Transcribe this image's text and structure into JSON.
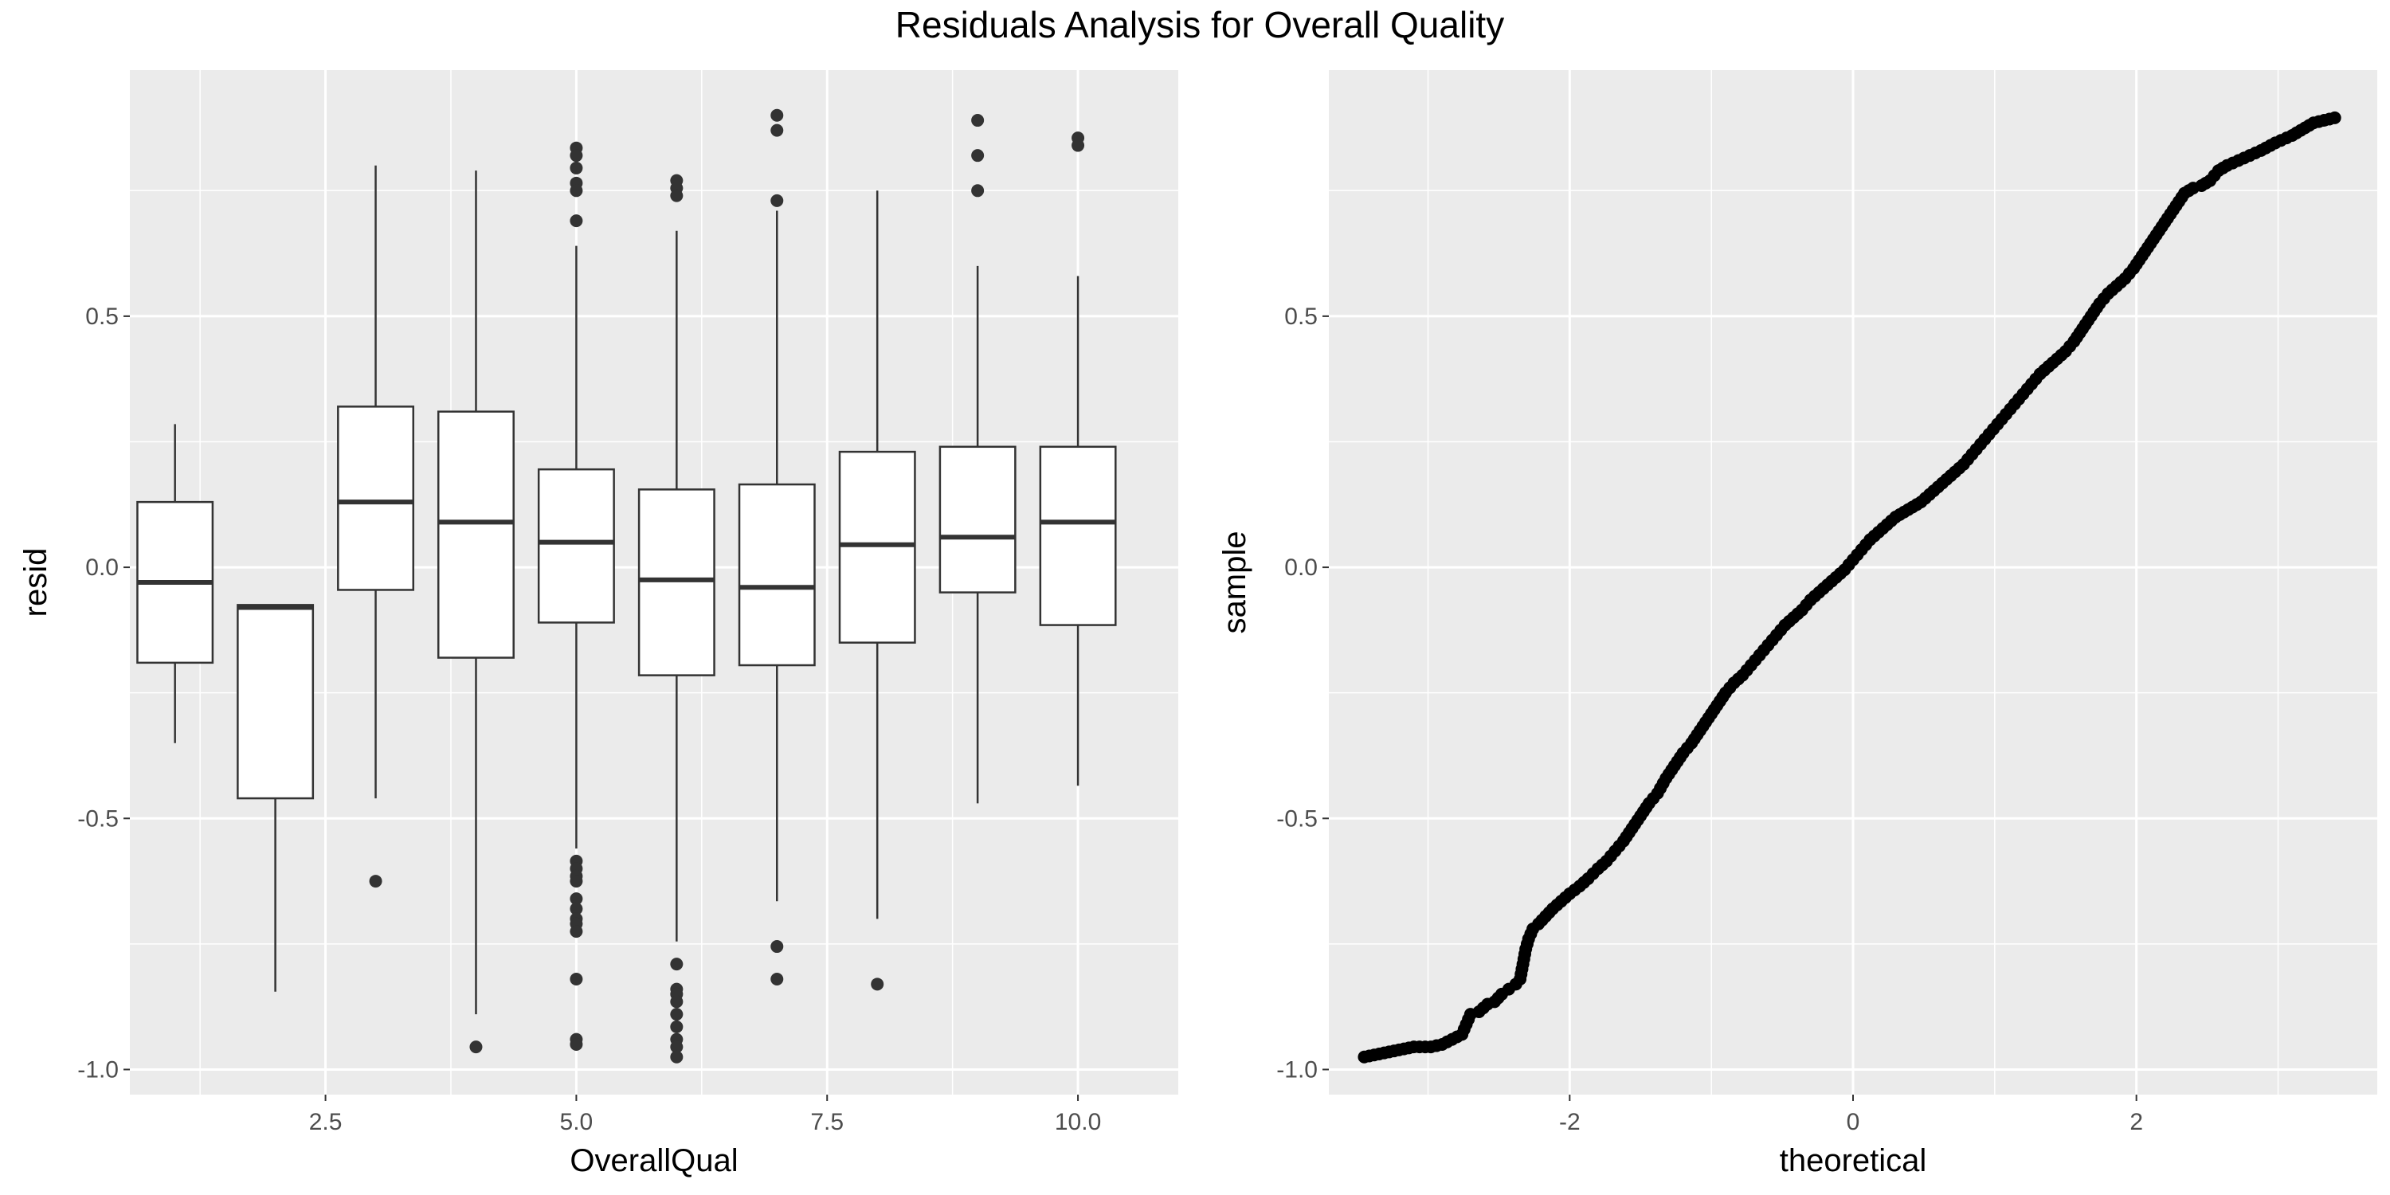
{
  "title": "Residuals Analysis for Overall Quality",
  "colors": {
    "panel": "#ebebeb",
    "grid": "#ffffff",
    "box_fill": "#ffffff",
    "box_line": "#333333",
    "point": "#000000",
    "outlier": "#333333",
    "text": "#000000",
    "tick_text": "#4d4d4d"
  },
  "chart_data": [
    {
      "type": "box",
      "xlabel": "OverallQual",
      "ylabel": "resid",
      "xlim": [
        0.55,
        11.0
      ],
      "ylim": [
        -1.05,
        0.99
      ],
      "x_ticks": [
        2.5,
        5.0,
        7.5,
        10.0
      ],
      "x_tick_labels": [
        "2.5",
        "5.0",
        "7.5",
        "10.0"
      ],
      "y_ticks": [
        -1.0,
        -0.5,
        0.0,
        0.5
      ],
      "y_tick_labels": [
        "-1.0",
        "-0.5",
        "0.0",
        "0.5"
      ],
      "grid": true,
      "boxes": [
        {
          "x": 1,
          "lower_whisker": -0.35,
          "q1": -0.19,
          "median": -0.03,
          "q3": 0.13,
          "upper_whisker": 0.285,
          "outliers": []
        },
        {
          "x": 2,
          "lower_whisker": -0.845,
          "q1": -0.46,
          "median": -0.08,
          "q3": -0.075,
          "upper_whisker": -0.075,
          "outliers": []
        },
        {
          "x": 3,
          "lower_whisker": -0.46,
          "q1": -0.045,
          "median": 0.13,
          "q3": 0.32,
          "upper_whisker": 0.8,
          "outliers": [
            -0.625
          ]
        },
        {
          "x": 4,
          "lower_whisker": -0.89,
          "q1": -0.18,
          "median": 0.09,
          "q3": 0.31,
          "upper_whisker": 0.79,
          "outliers": [
            -0.955
          ]
        },
        {
          "x": 5,
          "lower_whisker": -0.56,
          "q1": -0.11,
          "median": 0.05,
          "q3": 0.195,
          "upper_whisker": 0.64,
          "outliers": [
            0.835,
            0.82,
            0.795,
            0.765,
            0.75,
            0.69,
            -0.585,
            -0.6,
            -0.615,
            -0.625,
            -0.66,
            -0.68,
            -0.7,
            -0.71,
            -0.725,
            -0.82,
            -0.94,
            -0.95
          ]
        },
        {
          "x": 6,
          "lower_whisker": -0.745,
          "q1": -0.215,
          "median": -0.025,
          "q3": 0.155,
          "upper_whisker": 0.67,
          "outliers": [
            0.77,
            0.755,
            0.74,
            -0.79,
            -0.84,
            -0.85,
            -0.865,
            -0.89,
            -0.915,
            -0.94,
            -0.955,
            -0.975
          ]
        },
        {
          "x": 7,
          "lower_whisker": -0.665,
          "q1": -0.195,
          "median": -0.04,
          "q3": 0.165,
          "upper_whisker": 0.71,
          "outliers": [
            0.9,
            0.87,
            0.73,
            -0.755,
            -0.82
          ]
        },
        {
          "x": 8,
          "lower_whisker": -0.7,
          "q1": -0.15,
          "median": 0.045,
          "q3": 0.23,
          "upper_whisker": 0.75,
          "outliers": [
            -0.83
          ]
        },
        {
          "x": 9,
          "lower_whisker": -0.47,
          "q1": -0.05,
          "median": 0.06,
          "q3": 0.24,
          "upper_whisker": 0.6,
          "outliers": [
            0.89,
            0.82,
            0.75
          ]
        },
        {
          "x": 10,
          "lower_whisker": -0.435,
          "q1": -0.115,
          "median": 0.09,
          "q3": 0.24,
          "upper_whisker": 0.58,
          "outliers": [
            0.855,
            0.84
          ]
        }
      ]
    },
    {
      "type": "scatter",
      "xlabel": "theoretical",
      "ylabel": "sample",
      "xlim": [
        -3.7,
        3.7
      ],
      "ylim": [
        -1.05,
        0.99
      ],
      "x_ticks": [
        -2,
        0,
        2
      ],
      "x_tick_labels": [
        "-2",
        "0",
        "2"
      ],
      "y_ticks": [
        -1.0,
        -0.5,
        0.0,
        0.5
      ],
      "y_tick_labels": [
        "-1.0",
        "-0.5",
        "0.0",
        "0.5"
      ],
      "grid": true,
      "points": [
        [
          -3.45,
          -0.975
        ],
        [
          -3.1,
          -0.955
        ],
        [
          -2.98,
          -0.955
        ],
        [
          -2.9,
          -0.95
        ],
        [
          -2.83,
          -0.94
        ],
        [
          -2.76,
          -0.93
        ],
        [
          -2.7,
          -0.89
        ],
        [
          -2.64,
          -0.885
        ],
        [
          -2.58,
          -0.87
        ],
        [
          -2.53,
          -0.865
        ],
        [
          -2.48,
          -0.85
        ],
        [
          -2.43,
          -0.84
        ],
        [
          -2.38,
          -0.83
        ],
        [
          -2.35,
          -0.82
        ],
        [
          -2.33,
          -0.79
        ],
        [
          -2.31,
          -0.76
        ],
        [
          -2.29,
          -0.74
        ],
        [
          -2.26,
          -0.72
        ],
        [
          -2.22,
          -0.71
        ],
        [
          -2.17,
          -0.695
        ],
        [
          -2.12,
          -0.68
        ],
        [
          -2.06,
          -0.665
        ],
        [
          -2.0,
          -0.65
        ],
        [
          -1.93,
          -0.635
        ],
        [
          -1.87,
          -0.62
        ],
        [
          -1.8,
          -0.6
        ],
        [
          -1.74,
          -0.585
        ],
        [
          -1.68,
          -0.565
        ],
        [
          -1.62,
          -0.545
        ],
        [
          -1.56,
          -0.52
        ],
        [
          -1.5,
          -0.495
        ],
        [
          -1.44,
          -0.47
        ],
        [
          -1.38,
          -0.45
        ],
        [
          -1.32,
          -0.42
        ],
        [
          -1.26,
          -0.395
        ],
        [
          -1.2,
          -0.37
        ],
        [
          -1.14,
          -0.35
        ],
        [
          -1.08,
          -0.325
        ],
        [
          -1.02,
          -0.3
        ],
        [
          -0.96,
          -0.275
        ],
        [
          -0.9,
          -0.25
        ],
        [
          -0.84,
          -0.23
        ],
        [
          -0.78,
          -0.215
        ],
        [
          -0.72,
          -0.195
        ],
        [
          -0.66,
          -0.175
        ],
        [
          -0.6,
          -0.155
        ],
        [
          -0.54,
          -0.135
        ],
        [
          -0.48,
          -0.115
        ],
        [
          -0.42,
          -0.1
        ],
        [
          -0.36,
          -0.085
        ],
        [
          -0.3,
          -0.065
        ],
        [
          -0.24,
          -0.05
        ],
        [
          -0.18,
          -0.035
        ],
        [
          -0.12,
          -0.02
        ],
        [
          -0.06,
          -0.005
        ],
        [
          0.0,
          0.015
        ],
        [
          0.06,
          0.035
        ],
        [
          0.12,
          0.055
        ],
        [
          0.18,
          0.07
        ],
        [
          0.24,
          0.085
        ],
        [
          0.3,
          0.1
        ],
        [
          0.36,
          0.11
        ],
        [
          0.42,
          0.12
        ],
        [
          0.48,
          0.13
        ],
        [
          0.54,
          0.145
        ],
        [
          0.6,
          0.16
        ],
        [
          0.66,
          0.175
        ],
        [
          0.72,
          0.19
        ],
        [
          0.78,
          0.205
        ],
        [
          0.84,
          0.225
        ],
        [
          0.9,
          0.245
        ],
        [
          0.96,
          0.265
        ],
        [
          1.02,
          0.285
        ],
        [
          1.08,
          0.305
        ],
        [
          1.14,
          0.325
        ],
        [
          1.2,
          0.345
        ],
        [
          1.26,
          0.365
        ],
        [
          1.32,
          0.385
        ],
        [
          1.38,
          0.4
        ],
        [
          1.44,
          0.415
        ],
        [
          1.5,
          0.43
        ],
        [
          1.56,
          0.45
        ],
        [
          1.62,
          0.475
        ],
        [
          1.68,
          0.5
        ],
        [
          1.74,
          0.525
        ],
        [
          1.8,
          0.545
        ],
        [
          1.86,
          0.56
        ],
        [
          1.92,
          0.575
        ],
        [
          1.98,
          0.595
        ],
        [
          2.04,
          0.62
        ],
        [
          2.1,
          0.645
        ],
        [
          2.16,
          0.67
        ],
        [
          2.22,
          0.695
        ],
        [
          2.28,
          0.72
        ],
        [
          2.34,
          0.745
        ],
        [
          2.4,
          0.755
        ],
        [
          2.46,
          0.76
        ],
        [
          2.52,
          0.77
        ],
        [
          2.58,
          0.79
        ],
        [
          2.64,
          0.8
        ],
        [
          2.72,
          0.81
        ],
        [
          2.8,
          0.82
        ],
        [
          2.88,
          0.83
        ],
        [
          2.98,
          0.845
        ],
        [
          3.1,
          0.86
        ],
        [
          3.25,
          0.885
        ],
        [
          3.4,
          0.895
        ]
      ]
    }
  ]
}
